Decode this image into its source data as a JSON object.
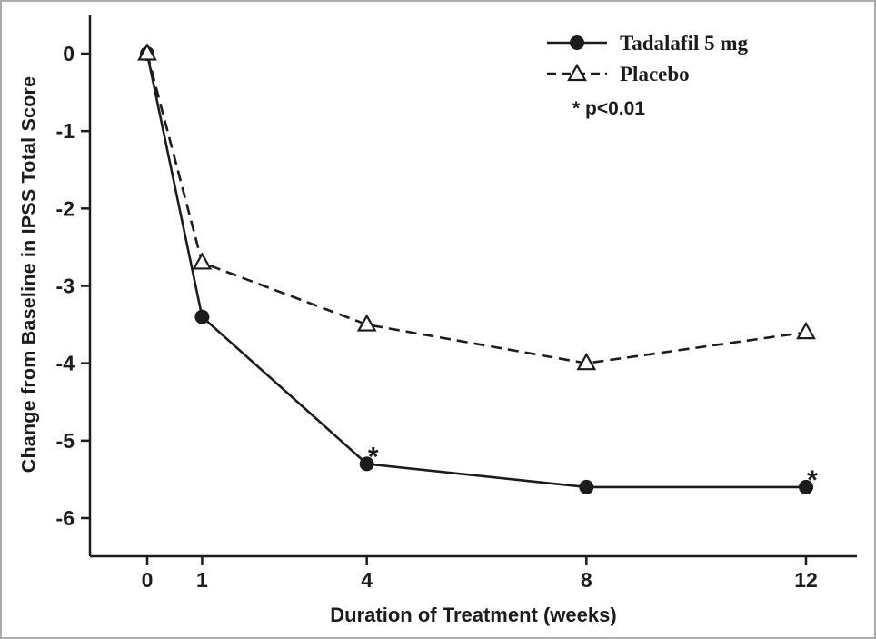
{
  "chart_data": {
    "type": "line",
    "x": [
      0,
      1,
      4,
      8,
      12
    ],
    "xticks": [
      0,
      1,
      4,
      8,
      12
    ],
    "yticks": [
      0,
      -1,
      -2,
      -3,
      -4,
      -5,
      -6
    ],
    "xlim": [
      -0.6,
      12.9
    ],
    "ylim": [
      -6.5,
      0.4
    ],
    "grid": false,
    "legend_position": "top-right",
    "title": "",
    "xlabel": "Duration of Treatment (weeks)",
    "ylabel": "Change from Baseline in IPSS Total Score",
    "significance_note": "* p<0.01",
    "series": [
      {
        "name": "Tadalafil 5 mg",
        "values": [
          0,
          -3.4,
          -5.3,
          -5.6,
          -5.6
        ],
        "marker": "filled-circle",
        "line_style": "solid",
        "color": "#1c1c1c",
        "annotations": [
          {
            "x": 4,
            "y": -5.3,
            "text": "*"
          },
          {
            "x": 12,
            "y": -5.6,
            "text": "*"
          }
        ]
      },
      {
        "name": "Placebo",
        "values": [
          0,
          -2.7,
          -3.5,
          -4.0,
          -3.6
        ],
        "marker": "open-triangle",
        "line_style": "dashed",
        "color": "#1c1c1c",
        "annotations": []
      }
    ]
  }
}
